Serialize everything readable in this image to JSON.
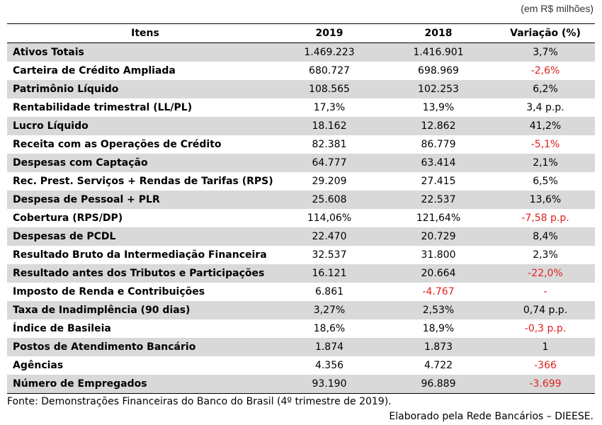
{
  "unit_note": "(em R$ milhões)",
  "headers": [
    "Itens",
    "2019",
    "2018",
    "Variação (%)"
  ],
  "rows": [
    {
      "item": "Ativos Totais",
      "v2019": "1.469.223",
      "v2018": "1.416.901",
      "var": "3,7%"
    },
    {
      "item": "Carteira de Crédito Ampliada",
      "v2019": "680.727",
      "v2018": "698.969",
      "var": "-2,6%"
    },
    {
      "item": "Patrimônio Líquido",
      "v2019": "108.565",
      "v2018": "102.253",
      "var": "6,2%"
    },
    {
      "item": "Rentabilidade trimestral (LL/PL)",
      "v2019": "17,3%",
      "v2018": "13,9%",
      "var": "3,4 p.p."
    },
    {
      "item": "Lucro Líquido",
      "v2019": "18.162",
      "v2018": "12.862",
      "var": "41,2%"
    },
    {
      "item": "Receita com as Operações de Crédito",
      "v2019": "82.381",
      "v2018": "86.779",
      "var": "-5,1%"
    },
    {
      "item": "Despesas com Captação",
      "v2019": "64.777",
      "v2018": "63.414",
      "var": "2,1%"
    },
    {
      "item": "Rec. Prest. Serviços + Rendas de Tarifas (RPS)",
      "v2019": "29.209",
      "v2018": "27.415",
      "var": "6,5%"
    },
    {
      "item": "Despesa de Pessoal + PLR",
      "v2019": "25.608",
      "v2018": "22.537",
      "var": "13,6%"
    },
    {
      "item": "Cobertura (RPS/DP)",
      "v2019": "114,06%",
      "v2018": "121,64%",
      "var": "-7,58 p.p."
    },
    {
      "item": "Despesas de PCDL",
      "v2019": "22.470",
      "v2018": "20.729",
      "var": "8,4%"
    },
    {
      "item": "Resultado Bruto da Intermediação Financeira",
      "v2019": "32.537",
      "v2018": "31.800",
      "var": "2,3%"
    },
    {
      "item": "Resultado antes dos Tributos e Participações",
      "v2019": "16.121",
      "v2018": "20.664",
      "var": "-22,0%"
    },
    {
      "item": "Imposto de Renda e Contribuições",
      "v2019": "6.861",
      "v2018": "-4.767",
      "var": "-"
    },
    {
      "item": "Taxa de Inadimplência (90 dias)",
      "v2019": "3,27%",
      "v2018": "2,53%",
      "var": "0,74 p.p."
    },
    {
      "item": "Índice de Basileia",
      "v2019": "18,6%",
      "v2018": "18,9%",
      "var": "-0,3 p.p."
    },
    {
      "item": "Postos de Atendimento Bancário",
      "v2019": "1.874",
      "v2018": "1.873",
      "var": "1"
    },
    {
      "item": "Agências",
      "v2019": "4.356",
      "v2018": "4.722",
      "var": "-366"
    },
    {
      "item": "Número de Empregados",
      "v2019": "93.190",
      "v2018": "96.889",
      "var": "-3.699"
    }
  ],
  "negative_color": "#e02020",
  "source": "Fonte: Demonstrações Financeiras do Banco do Brasil (4º trimestre de 2019).",
  "credit": "Elaborado pela Rede Bancários – DIEESE."
}
